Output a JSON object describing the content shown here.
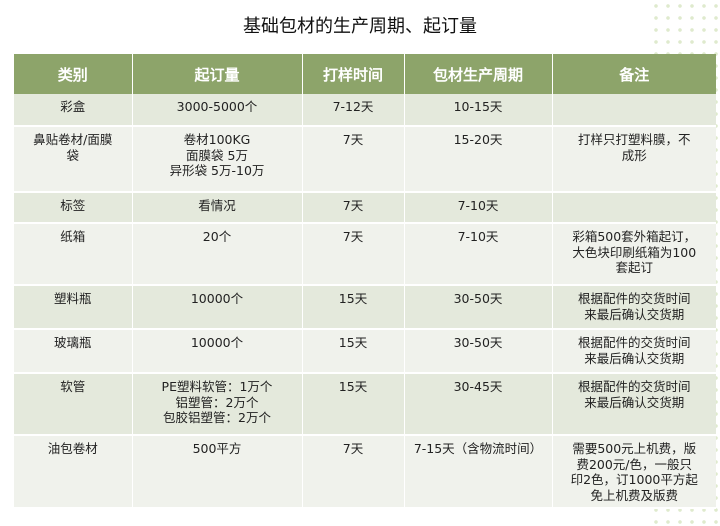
{
  "title": "基础包材的生产周期、起订量",
  "headers": [
    "类别",
    "起订量",
    "打样时间",
    "包材生产周期",
    "备注"
  ],
  "rows": [
    {
      "category": "彩盒",
      "moq": "3000-5000个",
      "sample": "7-12天",
      "cycle": "10-15天",
      "note": ""
    },
    {
      "category": "鼻贴卷材/面膜\n袋",
      "moq": "卷材100KG\n面膜袋 5万\n异形袋 5万-10万",
      "sample": "7天",
      "cycle": "15-20天",
      "note": "打样只打塑料膜，不\n成形"
    },
    {
      "category": "标签",
      "moq": "看情况",
      "sample": "7天",
      "cycle": "7-10天",
      "note": ""
    },
    {
      "category": "纸箱",
      "moq": "20个",
      "sample": "7天",
      "cycle": "7-10天",
      "note": "彩箱500套外箱起订，\n大色块印刷纸箱为100\n套起订"
    },
    {
      "category": "塑料瓶",
      "moq": "10000个",
      "sample": "15天",
      "cycle": "30-50天",
      "note": "根据配件的交货时间\n来最后确认交货期"
    },
    {
      "category": "玻璃瓶",
      "moq": "10000个",
      "sample": "15天",
      "cycle": "30-50天",
      "note": "根据配件的交货时间\n来最后确认交货期"
    },
    {
      "category": "软管",
      "moq": "PE塑料软管：1万个\n铝塑管：2万个\n包胶铝塑管：2万个",
      "sample": "15天",
      "cycle": "30-45天",
      "note": "根据配件的交货时间\n来最后确认交货期"
    },
    {
      "category": "油包卷材",
      "moq": "500平方",
      "sample": "7天",
      "cycle": "7-15天（含物流时间）",
      "note": "需要500元上机费，版\n费200元/色，一般只\n印2色，订1000平方起\n免上机费及版费"
    }
  ]
}
